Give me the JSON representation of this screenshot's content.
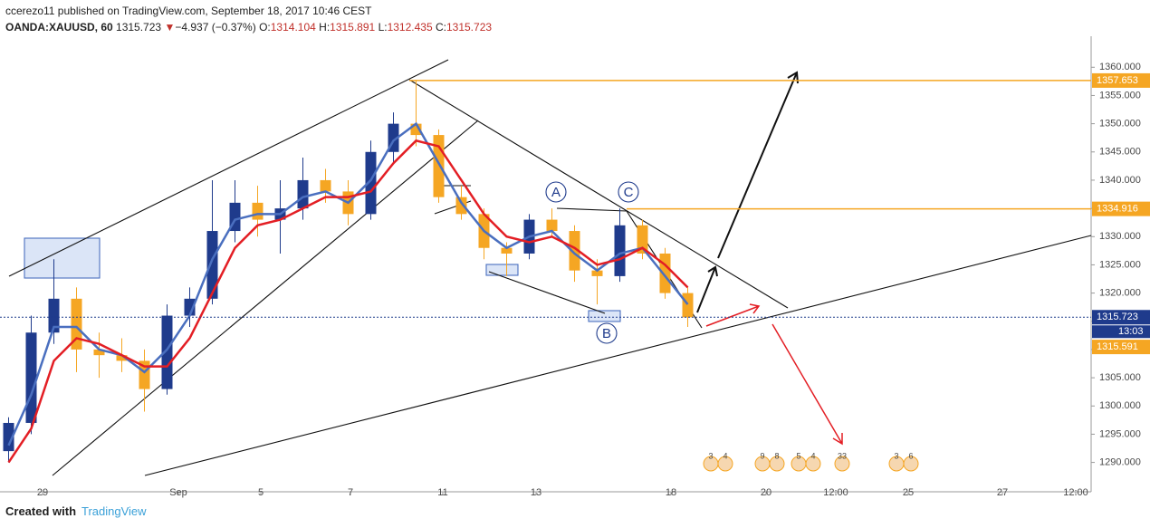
{
  "header": {
    "line1": "ccerezo11 published on TradingView.com, September 18, 2017 10:46 CEST",
    "symbol": "OANDA:XAUUSD, 60",
    "last": "1315.723",
    "arrow": "▼",
    "change": "−4.937 (−0.37%)",
    "o_label": "O:",
    "o": "1314.104",
    "h_label": "H:",
    "h": "1315.891",
    "l_label": "L:",
    "l": "1312.435",
    "c_label": "C:",
    "c": "1315.723"
  },
  "footer": {
    "created": "Created with",
    "brand": "TradingView"
  },
  "chart_data": {
    "type": "candlestick",
    "x": [
      -0.75,
      -0.25,
      0.25,
      0.75,
      1.25,
      1.75,
      2.25,
      2.75,
      3.25,
      3.75,
      4.25,
      4.75,
      5.25,
      5.75,
      6.25,
      6.75,
      7.25,
      7.75,
      8.25,
      8.75,
      9.25,
      9.75,
      10.25,
      10.75,
      11.25,
      11.75,
      12.25,
      12.75,
      13.25,
      13.75,
      14.25
    ],
    "open": [
      1292,
      1297,
      1313,
      1319,
      1310,
      1309,
      1308,
      1303,
      1316,
      1319,
      1331,
      1336,
      1333,
      1335,
      1340,
      1338,
      1334,
      1345,
      1350,
      1348,
      1337,
      1334,
      1328,
      1327,
      1333,
      1331,
      1324,
      1323,
      1332,
      1327,
      1320
    ],
    "high": [
      1298,
      1316,
      1326,
      1321,
      1313,
      1312,
      1310,
      1318,
      1321,
      1340,
      1340,
      1339,
      1340,
      1344,
      1342,
      1340,
      1347,
      1352,
      1357.7,
      1349,
      1339,
      1335,
      1329,
      1334,
      1335,
      1332,
      1326,
      1335,
      1333,
      1328,
      1321
    ],
    "low": [
      1290,
      1295,
      1311,
      1306,
      1305,
      1306,
      1299,
      1302,
      1314,
      1318,
      1329,
      1330,
      1327,
      1333,
      1336,
      1332,
      1333,
      1343,
      1346,
      1336,
      1333,
      1326,
      1323,
      1326,
      1330,
      1322,
      1318,
      1322,
      1326,
      1319,
      1314
    ],
    "close": [
      1297,
      1313,
      1319,
      1310,
      1309,
      1308,
      1303,
      1316,
      1319,
      1331,
      1336,
      1333,
      1335,
      1340,
      1338,
      1334,
      1345,
      1350,
      1348,
      1337,
      1334,
      1328,
      1327,
      1333,
      1331,
      1324,
      1323,
      1332,
      1327,
      1320,
      1315.7
    ],
    "up_color": "#1f3b8c",
    "down_color": "#f5a623",
    "ma": [
      {
        "color": "#4a6fbf",
        "values": [
          1293,
          1302,
          1314,
          1314,
          1310,
          1309,
          1306,
          1310,
          1316,
          1326,
          1333,
          1334,
          1334,
          1337,
          1338,
          1336,
          1340,
          1347,
          1350,
          1343,
          1336,
          1331,
          1328,
          1330,
          1331,
          1327,
          1324,
          1327,
          1328,
          1323,
          1318
        ]
      },
      {
        "color": "#e31e24",
        "values": [
          1290,
          1296,
          1308,
          1312,
          1311,
          1309,
          1307,
          1307,
          1312,
          1320,
          1328,
          1332,
          1333,
          1335,
          1337,
          1337,
          1338,
          1343,
          1347,
          1346,
          1340,
          1334,
          1330,
          1329,
          1330,
          1328,
          1325,
          1326,
          1328,
          1325,
          1321
        ]
      }
    ],
    "xlim": [
      -0.94,
      23.16
    ],
    "xticks": [
      {
        "value": 0,
        "label": "29"
      },
      {
        "value": 3.0,
        "label": "Sep"
      },
      {
        "value": 4.82,
        "label": "5"
      },
      {
        "value": 6.8,
        "label": "7"
      },
      {
        "value": 8.84,
        "label": "11"
      },
      {
        "value": 10.9,
        "label": "13"
      },
      {
        "value": 13.88,
        "label": "18"
      },
      {
        "value": 15.98,
        "label": "20"
      },
      {
        "value": 17.52,
        "label": "12:00"
      },
      {
        "value": 19.12,
        "label": "25"
      },
      {
        "value": 21.2,
        "label": "27"
      },
      {
        "value": 22.82,
        "label": "12:00"
      }
    ],
    "ylim": [
      1284.8,
      1365.5
    ],
    "yticks": [
      {
        "value": 1290,
        "label": "1290.000"
      },
      {
        "value": 1295,
        "label": "1295.000"
      },
      {
        "value": 1300,
        "label": "1300.000"
      },
      {
        "value": 1305,
        "label": "1305.000"
      },
      {
        "value": 1310,
        "label": "1310.000"
      },
      {
        "value": 1315,
        "label": "1315.000"
      },
      {
        "value": 1320,
        "label": "1320.000"
      },
      {
        "value": 1325,
        "label": "1325.000"
      },
      {
        "value": 1330,
        "label": "1330.000"
      },
      {
        "value": 1335,
        "label": "1335.000"
      },
      {
        "value": 1340,
        "label": "1340.000"
      },
      {
        "value": 1345,
        "label": "1345.000"
      },
      {
        "value": 1350,
        "label": "1350.000"
      },
      {
        "value": 1355,
        "label": "1355.000"
      },
      {
        "value": 1360,
        "label": "1360.000"
      }
    ],
    "levels": [
      {
        "value": 1357.653,
        "color": "#f5a623"
      },
      {
        "value": 1334.916,
        "color": "#f5a623"
      },
      {
        "value": 1315.723,
        "color": "#1f3b8c",
        "countdown": "13:03"
      },
      {
        "value": 1315.591,
        "color": "#f5a623"
      }
    ],
    "annotations": [
      "A",
      "B",
      "C"
    ],
    "events": [
      {
        "x": 14.76,
        "labels": [
          "3",
          "4"
        ]
      },
      {
        "x": 15.9,
        "labels": [
          "9",
          "8"
        ]
      },
      {
        "x": 16.7,
        "labels": [
          "5",
          "4"
        ]
      },
      {
        "x": 17.66,
        "labels": [
          "33"
        ]
      },
      {
        "x": 18.86,
        "labels": [
          "3",
          "6"
        ]
      }
    ]
  }
}
